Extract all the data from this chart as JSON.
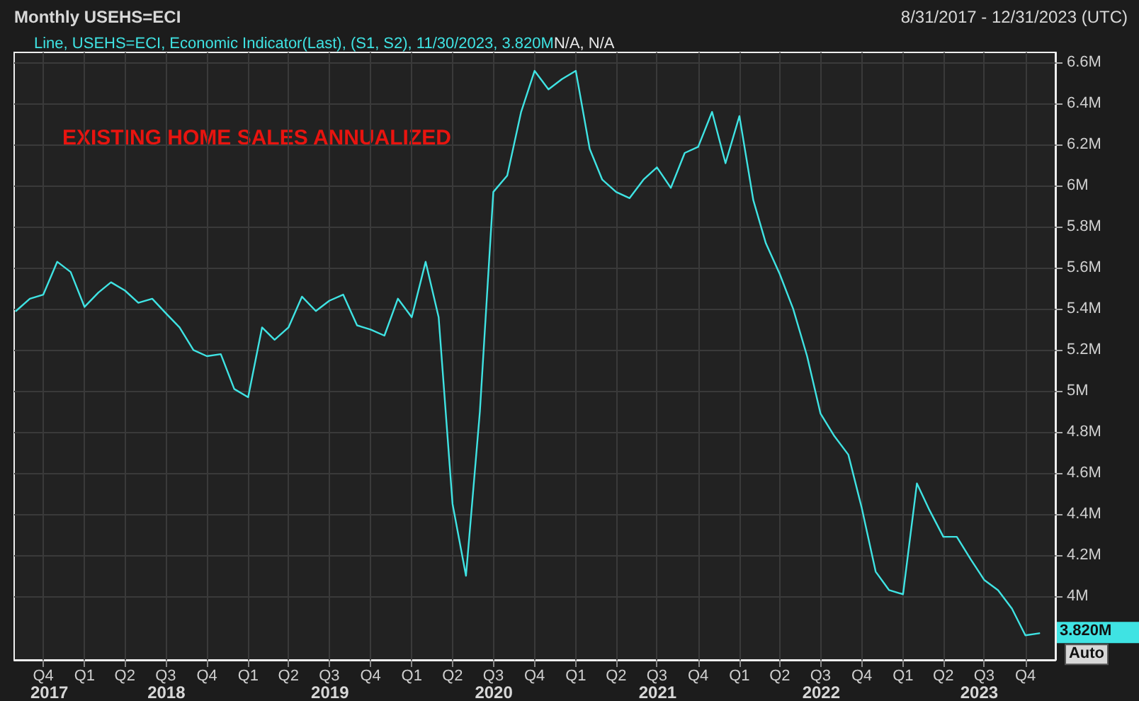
{
  "chart_data": {
    "type": "line",
    "title": "Monthly USEHS=ECI",
    "subtitle": "8/31/2017 - 12/31/2023 (UTC)",
    "x": [
      "2017-08",
      "2017-09",
      "2017-10",
      "2017-11",
      "2017-12",
      "2018-01",
      "2018-02",
      "2018-03",
      "2018-04",
      "2018-05",
      "2018-06",
      "2018-07",
      "2018-08",
      "2018-09",
      "2018-10",
      "2018-11",
      "2018-12",
      "2019-01",
      "2019-02",
      "2019-03",
      "2019-04",
      "2019-05",
      "2019-06",
      "2019-07",
      "2019-08",
      "2019-09",
      "2019-10",
      "2019-11",
      "2019-12",
      "2020-01",
      "2020-02",
      "2020-03",
      "2020-04",
      "2020-05",
      "2020-06",
      "2020-07",
      "2020-08",
      "2020-09",
      "2020-10",
      "2020-11",
      "2020-12",
      "2021-01",
      "2021-02",
      "2021-03",
      "2021-04",
      "2021-05",
      "2021-06",
      "2021-07",
      "2021-08",
      "2021-09",
      "2021-10",
      "2021-11",
      "2021-12",
      "2022-01",
      "2022-02",
      "2022-03",
      "2022-04",
      "2022-05",
      "2022-06",
      "2022-07",
      "2022-08",
      "2022-09",
      "2022-10",
      "2022-11",
      "2022-12",
      "2023-01",
      "2023-02",
      "2023-03",
      "2023-04",
      "2023-05",
      "2023-06",
      "2023-07",
      "2023-08",
      "2023-09",
      "2023-10",
      "2023-11"
    ],
    "series": [
      {
        "name": "Line, USEHS=ECI, Economic Indicator(Last), (S1, S2), 11/30/2023, 3.820M",
        "color": "#3fe3e3",
        "values": [
          5.39,
          5.45,
          5.47,
          5.63,
          5.58,
          5.41,
          5.48,
          5.53,
          5.49,
          5.43,
          5.45,
          5.38,
          5.31,
          5.2,
          5.17,
          5.18,
          5.01,
          4.97,
          5.31,
          5.25,
          5.31,
          5.46,
          5.39,
          5.44,
          5.47,
          5.32,
          5.3,
          5.27,
          5.45,
          5.36,
          5.63,
          5.36,
          4.45,
          4.1,
          4.9,
          5.97,
          6.05,
          6.36,
          6.56,
          6.47,
          6.52,
          6.56,
          6.18,
          6.03,
          5.97,
          5.94,
          6.03,
          6.09,
          5.99,
          6.16,
          6.19,
          6.36,
          6.11,
          6.34,
          5.93,
          5.72,
          5.57,
          5.4,
          5.17,
          4.89,
          4.78,
          4.69,
          4.43,
          4.12,
          4.03,
          4.01,
          4.55,
          4.42,
          4.29,
          4.29,
          4.18,
          4.08,
          4.03,
          3.94,
          3.81,
          3.82
        ]
      }
    ],
    "xlim": [
      "2017-07-28",
      "2023-12-07"
    ],
    "xticks": [
      {
        "value": "2017-10",
        "label": "Q4"
      },
      {
        "value": "2018-01",
        "label": "Q1"
      },
      {
        "value": "2018-04",
        "label": "Q2"
      },
      {
        "value": "2018-07",
        "label": "Q3"
      },
      {
        "value": "2018-10",
        "label": "Q4"
      },
      {
        "value": "2019-01",
        "label": "Q1"
      },
      {
        "value": "2019-04",
        "label": "Q2"
      },
      {
        "value": "2019-07",
        "label": "Q3"
      },
      {
        "value": "2019-10",
        "label": "Q4"
      },
      {
        "value": "2020-01",
        "label": "Q1"
      },
      {
        "value": "2020-04",
        "label": "Q2"
      },
      {
        "value": "2020-07",
        "label": "Q3"
      },
      {
        "value": "2020-10",
        "label": "Q4"
      },
      {
        "value": "2021-01",
        "label": "Q1"
      },
      {
        "value": "2021-04",
        "label": "Q2"
      },
      {
        "value": "2021-07",
        "label": "Q3"
      },
      {
        "value": "2021-10",
        "label": "Q4"
      },
      {
        "value": "2022-01",
        "label": "Q1"
      },
      {
        "value": "2022-04",
        "label": "Q2"
      },
      {
        "value": "2022-07",
        "label": "Q3"
      },
      {
        "value": "2022-10",
        "label": "Q4"
      },
      {
        "value": "2023-01",
        "label": "Q1"
      },
      {
        "value": "2023-04",
        "label": "Q2"
      },
      {
        "value": "2023-07",
        "label": "Q3"
      },
      {
        "value": "2023-10",
        "label": "Q4"
      }
    ],
    "ylim": [
      3.69,
      6.65
    ],
    "yticks": [
      {
        "value": 4,
        "label": "4M"
      },
      {
        "value": 4.2,
        "label": "4.2M"
      },
      {
        "value": 4.4,
        "label": "4.4M"
      },
      {
        "value": 4.6,
        "label": "4.6M"
      },
      {
        "value": 4.8,
        "label": "4.8M"
      },
      {
        "value": 5,
        "label": "5M"
      },
      {
        "value": 5.2,
        "label": "5.2M"
      },
      {
        "value": 5.4,
        "label": "5.4M"
      },
      {
        "value": 5.6,
        "label": "5.6M"
      },
      {
        "value": 5.8,
        "label": "5.8M"
      },
      {
        "value": 6,
        "label": "6M"
      },
      {
        "value": 6.2,
        "label": "6.2M"
      },
      {
        "value": 6.4,
        "label": "6.4M"
      },
      {
        "value": 6.6,
        "label": "6.6M"
      }
    ],
    "grid": true,
    "legend": "top left",
    "annotations": [
      "EXISTING HOME SALES ANNUALIZED",
      "N/A, N/A",
      "Auto",
      {
        "text": "3.820M",
        "x": "2023-11",
        "y": 3.82
      },
      "2017",
      "2018",
      "2019",
      "2020",
      "2021",
      "2022",
      "2023"
    ]
  }
}
